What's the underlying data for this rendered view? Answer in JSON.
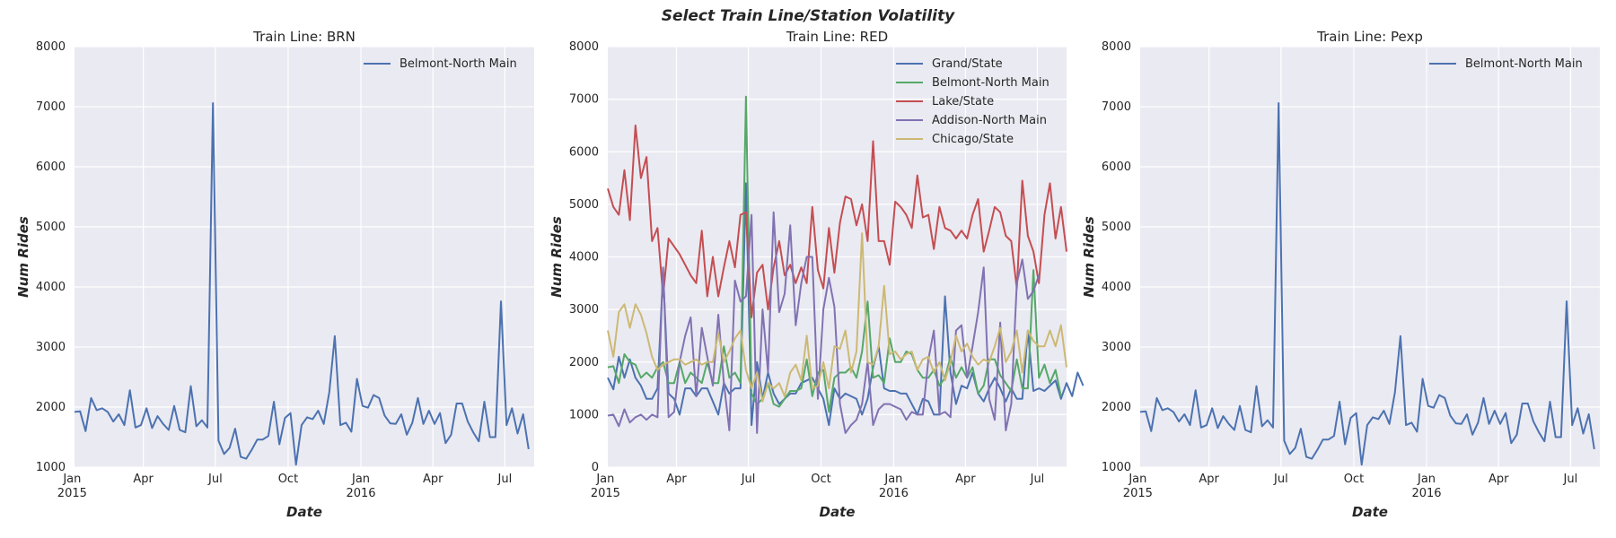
{
  "figure": {
    "title": "Select Train Line/Station Volatility"
  },
  "chart_data": [
    {
      "type": "line",
      "title": "Train Line: BRN",
      "xlabel": "Date",
      "ylabel": "Num Rides",
      "xlim": [
        "2015-01-04",
        "2016-08-07"
      ],
      "ylim": [
        1000,
        8000
      ],
      "yticks": [
        1000,
        2000,
        3000,
        4000,
        5000,
        6000,
        7000,
        8000
      ],
      "xticks": [
        {
          "date": "2015-01-01",
          "label": "Jan",
          "sublabel": "2015"
        },
        {
          "date": "2015-04-01",
          "label": "Apr"
        },
        {
          "date": "2015-07-01",
          "label": "Jul"
        },
        {
          "date": "2015-10-01",
          "label": "Oct"
        },
        {
          "date": "2016-01-01",
          "label": "Jan",
          "sublabel": "2016"
        },
        {
          "date": "2016-04-01",
          "label": "Apr"
        },
        {
          "date": "2016-07-01",
          "label": "Jul"
        }
      ],
      "grid": true,
      "legend": "top-right",
      "x_start": "2015-01-04",
      "x_step_days": 7,
      "series": [
        {
          "name": "Belmont-North Main",
          "color": "#4c72b0",
          "values": [
            1920,
            1930,
            1600,
            2150,
            1950,
            1980,
            1920,
            1760,
            1880,
            1700,
            2280,
            1660,
            1700,
            1980,
            1650,
            1850,
            1720,
            1620,
            2020,
            1620,
            1580,
            2350,
            1680,
            1780,
            1660,
            7060,
            1440,
            1220,
            1320,
            1640,
            1170,
            1140,
            1290,
            1460,
            1460,
            1520,
            2090,
            1380,
            1820,
            1900,
            1040,
            1700,
            1830,
            1800,
            1940,
            1720,
            2250,
            3180,
            1700,
            1740,
            1590,
            2470,
            2020,
            1990,
            2200,
            2150,
            1860,
            1730,
            1720,
            1880,
            1540,
            1740,
            2150,
            1720,
            1940,
            1720,
            1900,
            1400,
            1540,
            2060,
            2060,
            1760,
            1580,
            1430,
            2090,
            1500,
            1500,
            3760,
            1700,
            1980,
            1560,
            1880,
            1300
          ]
        }
      ]
    },
    {
      "type": "line",
      "title": "Train Line: RED",
      "xlabel": "Date",
      "ylabel": "Num Rides",
      "xlim": [
        "2015-01-04",
        "2016-08-07"
      ],
      "ylim": [
        0,
        8000
      ],
      "yticks": [
        0,
        1000,
        2000,
        3000,
        4000,
        5000,
        6000,
        7000,
        8000
      ],
      "xticks": [
        {
          "date": "2015-01-01",
          "label": "Jan",
          "sublabel": "2015"
        },
        {
          "date": "2015-04-01",
          "label": "Apr"
        },
        {
          "date": "2015-07-01",
          "label": "Jul"
        },
        {
          "date": "2015-10-01",
          "label": "Oct"
        },
        {
          "date": "2016-01-01",
          "label": "Jan",
          "sublabel": "2016"
        },
        {
          "date": "2016-04-01",
          "label": "Apr"
        },
        {
          "date": "2016-07-01",
          "label": "Jul"
        }
      ],
      "grid": true,
      "legend": "top-right",
      "x_start": "2015-01-04",
      "x_step_days": 7,
      "series": [
        {
          "name": "Grand/State",
          "color": "#4c72b0",
          "values": [
            1700,
            1480,
            2100,
            1700,
            2050,
            1700,
            1550,
            1300,
            1300,
            1500,
            3700,
            1400,
            1300,
            1000,
            1500,
            1500,
            1350,
            1500,
            1500,
            1250,
            1000,
            1600,
            1400,
            1500,
            1500,
            5400,
            800,
            2000,
            1300,
            1800,
            1400,
            1200,
            1300,
            1400,
            1400,
            1600,
            1650,
            1700,
            1500,
            1300,
            800,
            1500,
            1300,
            1400,
            1350,
            1300,
            1000,
            1300,
            1900,
            2300,
            1500,
            1450,
            1450,
            1400,
            1400,
            1200,
            1000,
            1300,
            1250,
            1000,
            1000,
            3250,
            1800,
            1200,
            1550,
            1500,
            1800,
            1400,
            1250,
            1500,
            1700,
            1500,
            1250,
            1500,
            1300,
            1300,
            2600,
            1450,
            1500,
            1450,
            1550,
            1650,
            1300,
            1600,
            1350,
            1800,
            1550
          ]
        },
        {
          "name": "Belmont-North Main",
          "color": "#55a868",
          "values": [
            1900,
            1920,
            1600,
            2150,
            2000,
            1950,
            1700,
            1800,
            1700,
            1900,
            2000,
            1600,
            1600,
            2000,
            1600,
            1800,
            1700,
            1600,
            2000,
            1600,
            1600,
            2300,
            1700,
            1800,
            1600,
            7050,
            1400,
            1200,
            1300,
            1600,
            1200,
            1150,
            1300,
            1450,
            1450,
            1500,
            2050,
            1350,
            1800,
            1850,
            1050,
            1700,
            1800,
            1800,
            1900,
            1700,
            2200,
            3150,
            1700,
            1750,
            1600,
            2450,
            2000,
            2000,
            2200,
            2150,
            1850,
            1700,
            1700,
            1850,
            1550,
            1700,
            2100,
            1700,
            1900,
            1700,
            1900,
            1400,
            1550,
            2050,
            2050,
            1750,
            1600,
            1450,
            2050,
            1500,
            1500,
            3750,
            1700,
            1950,
            1600,
            1850,
            1350
          ]
        },
        {
          "name": "Lake/State",
          "color": "#c44e52",
          "values": [
            5300,
            4950,
            4800,
            5650,
            4700,
            6500,
            5500,
            5900,
            4300,
            4550,
            3250,
            4350,
            4200,
            4050,
            3850,
            3650,
            3500,
            4500,
            3250,
            4000,
            3250,
            3800,
            4300,
            3800,
            4800,
            4850,
            2850,
            3700,
            3850,
            3000,
            3800,
            4300,
            3650,
            3850,
            3500,
            3800,
            3500,
            4950,
            3750,
            3400,
            4550,
            3700,
            4650,
            5150,
            5100,
            4600,
            5000,
            4300,
            6200,
            4300,
            4300,
            3850,
            5050,
            4950,
            4800,
            4550,
            5550,
            4750,
            4800,
            4150,
            4950,
            4550,
            4500,
            4350,
            4500,
            4350,
            4800,
            5100,
            4100,
            4500,
            4950,
            4850,
            4400,
            4300,
            3400,
            5450,
            4400,
            4100,
            3500,
            4800,
            5400,
            4350,
            4950,
            4100
          ]
        },
        {
          "name": "Addison-North Main",
          "color": "#8172b2",
          "values": [
            980,
            1000,
            780,
            1100,
            850,
            950,
            1000,
            900,
            1000,
            950,
            3800,
            950,
            1050,
            2000,
            2500,
            2850,
            1350,
            2650,
            2100,
            1550,
            2900,
            1600,
            700,
            3550,
            3150,
            3250,
            4800,
            650,
            3000,
            1800,
            4850,
            2950,
            3300,
            4600,
            2700,
            3500,
            4000,
            4000,
            1300,
            3000,
            3600,
            3050,
            1200,
            650,
            800,
            900,
            1200,
            2000,
            800,
            1100,
            1200,
            1200,
            1150,
            1100,
            900,
            1050,
            1000,
            1000,
            2050,
            2600,
            1000,
            1050,
            950,
            2600,
            2700,
            1700,
            2300,
            2950,
            3800,
            1300,
            900,
            2750,
            700,
            1200,
            3500,
            3950,
            3200,
            3350,
            3650
          ]
        },
        {
          "name": "Chicago/State",
          "color": "#ccb974",
          "values": [
            2600,
            2100,
            2950,
            3100,
            2650,
            3100,
            2900,
            2550,
            2100,
            1850,
            1950,
            2000,
            2050,
            2050,
            1950,
            2000,
            2050,
            1950,
            2000,
            2000,
            2550,
            2000,
            2200,
            2450,
            2600,
            1850,
            1500,
            1800,
            1250,
            1600,
            1500,
            1600,
            1350,
            1800,
            1950,
            1650,
            2500,
            1500,
            1550,
            2000,
            1500,
            2300,
            2250,
            2600,
            1800,
            2200,
            4450,
            2000,
            1950,
            2300,
            3450,
            2150,
            2200,
            2050,
            2150,
            2200,
            1850,
            2050,
            2100,
            1800,
            2000,
            1650,
            2000,
            2500,
            2200,
            2350,
            2100,
            1950,
            2050,
            2000,
            2300,
            2650,
            2000,
            2200,
            2600,
            1800,
            2600,
            2400,
            2300,
            2300,
            2600,
            2300,
            2700,
            1900
          ]
        }
      ]
    },
    {
      "type": "line",
      "title": "Train Line: Pexp",
      "xlabel": "Date",
      "ylabel": "Num Rides",
      "xlim": [
        "2015-01-04",
        "2016-08-07"
      ],
      "ylim": [
        1000,
        8000
      ],
      "yticks": [
        1000,
        2000,
        3000,
        4000,
        5000,
        6000,
        7000,
        8000
      ],
      "xticks": [
        {
          "date": "2015-01-01",
          "label": "Jan",
          "sublabel": "2015"
        },
        {
          "date": "2015-04-01",
          "label": "Apr"
        },
        {
          "date": "2015-07-01",
          "label": "Jul"
        },
        {
          "date": "2015-10-01",
          "label": "Oct"
        },
        {
          "date": "2016-01-01",
          "label": "Jan",
          "sublabel": "2016"
        },
        {
          "date": "2016-04-01",
          "label": "Apr"
        },
        {
          "date": "2016-07-01",
          "label": "Jul"
        }
      ],
      "grid": true,
      "legend": "top-right",
      "x_start": "2015-01-04",
      "x_step_days": 7,
      "series": [
        {
          "name": "Belmont-North Main",
          "color": "#4c72b0",
          "values": [
            1920,
            1930,
            1600,
            2150,
            1950,
            1980,
            1920,
            1760,
            1880,
            1700,
            2280,
            1660,
            1700,
            1980,
            1650,
            1850,
            1720,
            1620,
            2020,
            1620,
            1580,
            2350,
            1680,
            1780,
            1660,
            7060,
            1440,
            1220,
            1320,
            1640,
            1170,
            1140,
            1290,
            1460,
            1460,
            1520,
            2090,
            1380,
            1820,
            1900,
            1040,
            1700,
            1830,
            1800,
            1940,
            1720,
            2250,
            3180,
            1700,
            1740,
            1590,
            2470,
            2020,
            1990,
            2200,
            2150,
            1860,
            1730,
            1720,
            1880,
            1540,
            1740,
            2150,
            1720,
            1940,
            1720,
            1900,
            1400,
            1540,
            2060,
            2060,
            1760,
            1580,
            1430,
            2090,
            1500,
            1500,
            3760,
            1700,
            1980,
            1560,
            1880,
            1300
          ]
        }
      ]
    }
  ]
}
